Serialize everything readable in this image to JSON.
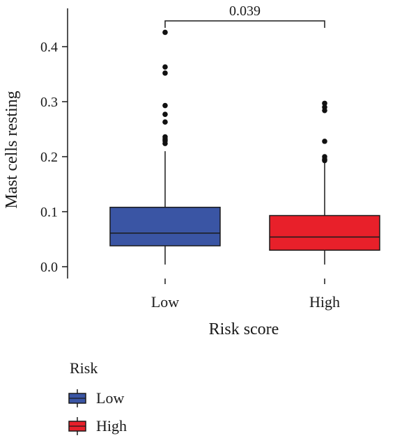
{
  "chart_data": {
    "type": "boxplot",
    "title": "",
    "xlabel": "Risk score",
    "ylabel": "Mast cells resting",
    "ylim": [
      -0.015,
      0.45
    ],
    "yticks": [
      0.0,
      0.1,
      0.2,
      0.3,
      0.4
    ],
    "ytick_labels": [
      "0.0",
      "0.1",
      "0.2",
      "0.3",
      "0.4"
    ],
    "categories": [
      "Low",
      "High"
    ],
    "series": [
      {
        "name": "Low",
        "color": "#3a55a4",
        "whisker_low": 0.004,
        "q1": 0.038,
        "median": 0.061,
        "q3": 0.108,
        "whisker_high": 0.21,
        "outliers": [
          0.426,
          0.363,
          0.352,
          0.293,
          0.277,
          0.263,
          0.236,
          0.232,
          0.229,
          0.224
        ]
      },
      {
        "name": "High",
        "color": "#e8202a",
        "whisker_low": 0.004,
        "q1": 0.03,
        "median": 0.054,
        "q3": 0.093,
        "whisker_high": 0.19,
        "outliers": [
          0.297,
          0.29,
          0.284,
          0.228,
          0.2,
          0.195,
          0.193
        ]
      }
    ],
    "annotations": [
      {
        "text": "0.039",
        "between": [
          "Low",
          "High"
        ]
      }
    ],
    "legend": {
      "title": "Risk",
      "entries": [
        "Low",
        "High"
      ],
      "position": "bottom-left"
    }
  }
}
